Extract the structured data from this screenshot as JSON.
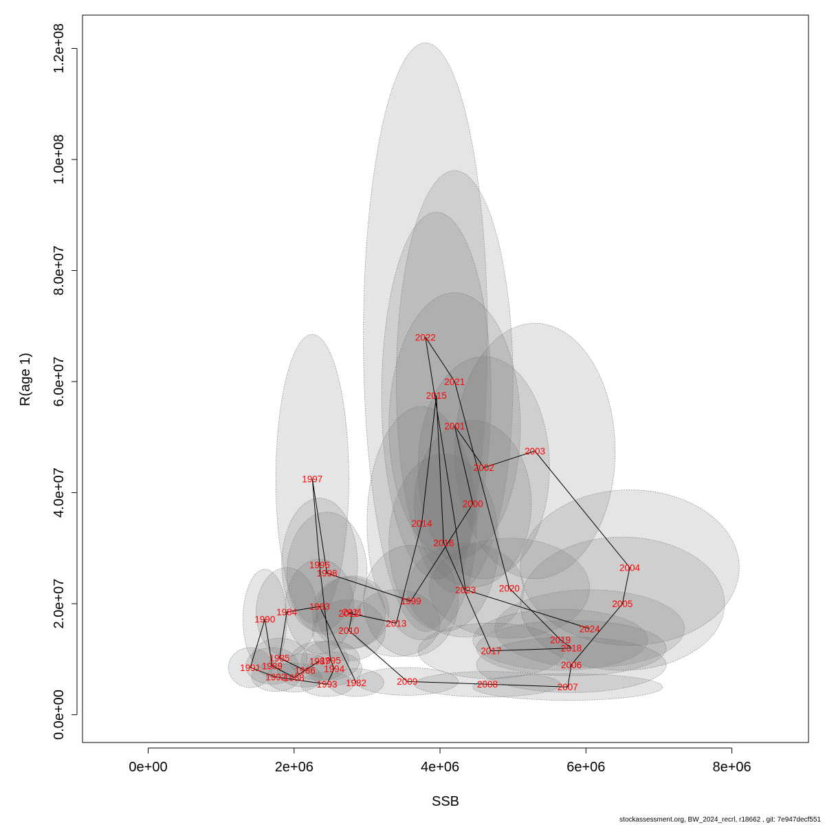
{
  "chart_data": {
    "type": "scatter",
    "title": "",
    "xlabel": "SSB",
    "ylabel": "R(age 1)",
    "xlim": [
      -900000,
      9050000
    ],
    "ylim": [
      -5000000,
      126000000
    ],
    "x_ticks": [
      0,
      2000000,
      4000000,
      6000000,
      8000000
    ],
    "x_tick_labels": [
      "0e+00",
      "2e+06",
      "4e+06",
      "6e+06",
      "8e+06"
    ],
    "y_ticks": [
      0,
      20000000,
      40000000,
      60000000,
      80000000,
      100000000,
      120000000
    ],
    "y_tick_labels": [
      "0.0e+00",
      "2.0e+07",
      "4.0e+07",
      "6.0e+07",
      "8.0e+07",
      "1.0e+08",
      "1.2e+08"
    ],
    "points": [
      {
        "year": "1982",
        "ssb": 2850000,
        "rec": 5800000,
        "rx": 380000,
        "ry": 2500000
      },
      {
        "year": "1983",
        "ssb": 2350000,
        "rec": 19500000,
        "rx": 470000,
        "ry": 8500000
      },
      {
        "year": "1984",
        "ssb": 1900000,
        "rec": 18500000,
        "rx": 420000,
        "ry": 8000000
      },
      {
        "year": "1985",
        "ssb": 1800000,
        "rec": 10200000,
        "rx": 380000,
        "ry": 3600000
      },
      {
        "year": "1986",
        "ssb": 2150000,
        "rec": 8000000,
        "rx": 380000,
        "ry": 3000000
      },
      {
        "year": "1987",
        "ssb": 2350000,
        "rec": 9700000,
        "rx": 400000,
        "ry": 3500000
      },
      {
        "year": "1988",
        "ssb": 2000000,
        "rec": 6700000,
        "rx": 380000,
        "ry": 2600000
      },
      {
        "year": "1989",
        "ssb": 1700000,
        "rec": 8800000,
        "rx": 360000,
        "ry": 3300000
      },
      {
        "year": "1990",
        "ssb": 1600000,
        "rec": 17200000,
        "rx": 300000,
        "ry": 9000000
      },
      {
        "year": "1991",
        "ssb": 1400000,
        "rec": 8500000,
        "rx": 300000,
        "ry": 3600000
      },
      {
        "year": "1992",
        "ssb": 1750000,
        "rec": 6800000,
        "rx": 330000,
        "ry": 2600000
      },
      {
        "year": "1993",
        "ssb": 2450000,
        "rec": 5500000,
        "rx": 360000,
        "ry": 2200000
      },
      {
        "year": "1994",
        "ssb": 2550000,
        "rec": 8300000,
        "rx": 380000,
        "ry": 3000000
      },
      {
        "year": "1995",
        "ssb": 2500000,
        "rec": 9800000,
        "rx": 400000,
        "ry": 3500000
      },
      {
        "year": "1996",
        "ssb": 2350000,
        "rec": 27000000,
        "rx": 520000,
        "ry": 12000000
      },
      {
        "year": "1997",
        "ssb": 2250000,
        "rec": 42500000,
        "rx": 500000,
        "ry": 26000000
      },
      {
        "year": "1998",
        "ssb": 2450000,
        "rec": 25500000,
        "rx": 550000,
        "ry": 11000000
      },
      {
        "year": "1999",
        "ssb": 3600000,
        "rec": 20500000,
        "rx": 650000,
        "ry": 10000000
      },
      {
        "year": "2000",
        "ssb": 4450000,
        "rec": 38000000,
        "rx": 800000,
        "ry": 15000000
      },
      {
        "year": "2001",
        "ssb": 4200000,
        "rec": 52000000,
        "rx": 900000,
        "ry": 24000000
      },
      {
        "year": "2002",
        "ssb": 4600000,
        "rec": 44500000,
        "rx": 900000,
        "ry": 20000000
      },
      {
        "year": "2003",
        "ssb": 5300000,
        "rec": 47500000,
        "rx": 1100000,
        "ry": 23000000
      },
      {
        "year": "2004",
        "ssb": 6600000,
        "rec": 26500000,
        "rx": 1500000,
        "ry": 14000000
      },
      {
        "year": "2005",
        "ssb": 6500000,
        "rec": 20000000,
        "rx": 1400000,
        "ry": 12000000
      },
      {
        "year": "2006",
        "ssb": 5800000,
        "rec": 9000000,
        "rx": 1300000,
        "ry": 5000000
      },
      {
        "year": "2007",
        "ssb": 5750000,
        "rec": 5000000,
        "rx": 1300000,
        "ry": 2400000
      },
      {
        "year": "2008",
        "ssb": 4650000,
        "rec": 5500000,
        "rx": 1000000,
        "ry": 2300000
      },
      {
        "year": "2009",
        "ssb": 3550000,
        "rec": 6000000,
        "rx": 700000,
        "ry": 2500000
      },
      {
        "year": "2010",
        "ssb": 2750000,
        "rec": 15200000,
        "rx": 500000,
        "ry": 5500000
      },
      {
        "year": "2011",
        "ssb": 2800000,
        "rec": 18500000,
        "rx": 500000,
        "ry": 6500000
      },
      {
        "year": "2012",
        "ssb": 2750000,
        "rec": 18300000,
        "rx": 500000,
        "ry": 6500000
      },
      {
        "year": "2013",
        "ssb": 3400000,
        "rec": 16500000,
        "rx": 600000,
        "ry": 6000000
      },
      {
        "year": "2014",
        "ssb": 3750000,
        "rec": 34500000,
        "rx": 750000,
        "ry": 21000000
      },
      {
        "year": "2015",
        "ssb": 3950000,
        "rec": 57500000,
        "rx": 750000,
        "ry": 33000000
      },
      {
        "year": "2016",
        "ssb": 4050000,
        "rec": 31000000,
        "rx": 750000,
        "ry": 16000000
      },
      {
        "year": "2017",
        "ssb": 4700000,
        "rec": 11500000,
        "rx": 1000000,
        "ry": 5000000
      },
      {
        "year": "2018",
        "ssb": 5800000,
        "rec": 12000000,
        "rx": 1300000,
        "ry": 5000000
      },
      {
        "year": "2019",
        "ssb": 5650000,
        "rec": 13500000,
        "rx": 1200000,
        "ry": 5500000
      },
      {
        "year": "2020",
        "ssb": 4950000,
        "rec": 22800000,
        "rx": 1100000,
        "ry": 9000000
      },
      {
        "year": "2021",
        "ssb": 4200000,
        "rec": 60000000,
        "rx": 800000,
        "ry": 38000000
      },
      {
        "year": "2022",
        "ssb": 3800000,
        "rec": 68000000,
        "rx": 850000,
        "ry": 53000000
      },
      {
        "year": "2023",
        "ssb": 4350000,
        "rec": 22500000,
        "rx": 800000,
        "ry": 8500000
      },
      {
        "year": "2024",
        "ssb": 6050000,
        "rec": 15500000,
        "rx": 1300000,
        "ry": 7000000
      }
    ]
  },
  "footer": {
    "text": "stockassessment.org, BW_2024_recrl, r18662 , git: 7e947decf551"
  }
}
